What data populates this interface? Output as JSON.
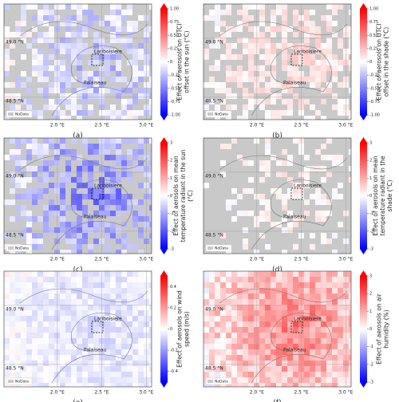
{
  "map_common": {
    "lonlim": [
      1.4,
      3.06
    ],
    "latlim": [
      48.31,
      49.29
    ],
    "lon_ticks": [
      {
        "value": 2.0,
        "label": "2.0 °E"
      },
      {
        "value": 2.5,
        "label": "2.5 °E"
      },
      {
        "value": 3.0,
        "label": "3.0 °E"
      }
    ],
    "lat_ticks": [
      {
        "value": 49.0,
        "label": "49.0 °N"
      },
      {
        "value": 48.5,
        "label": "48.5 °N"
      }
    ],
    "places": [
      "Lariboisiere",
      "Palaiseau"
    ],
    "legend": "NoData"
  },
  "panels": [
    {
      "label": "(a)",
      "colorbar_label": [
        "Effect of aerosols on UTCI",
        "offset in the sun (°C)"
      ],
      "clim": [
        -1,
        1
      ],
      "ticks": [
        {
          "value": 1,
          "label": "1.00"
        },
        {
          "value": 0.75,
          "label": "0.75"
        },
        {
          "value": 0.5,
          "label": "0.50"
        },
        {
          "value": 0.25,
          "label": "0.25"
        },
        0,
        {
          "value": -0.25,
          "label": "-0.25"
        },
        {
          "value": -0.5,
          "label": "-0.50"
        },
        {
          "value": -0.75,
          "label": "-0.75"
        },
        {
          "value": -1,
          "label": "-1.00"
        }
      ]
    },
    {
      "label": "(b)",
      "colorbar_label": [
        "Effect of aerosols on UTCI",
        "offset in the shade (°C)"
      ],
      "clim": [
        -1,
        1
      ],
      "ticks": [
        {
          "value": 1,
          "label": "1.00"
        },
        {
          "value": 0.75,
          "label": "0.75"
        },
        {
          "value": 0.5,
          "label": "0.50"
        },
        {
          "value": 0.25,
          "label": "0.25"
        },
        0,
        {
          "value": -0.25,
          "label": "-0.25"
        },
        {
          "value": -0.5,
          "label": "-0.50"
        },
        {
          "value": -0.75,
          "label": "-0.75"
        },
        {
          "value": -1,
          "label": "-1.00"
        }
      ]
    },
    {
      "label": "(c)",
      "colorbar_label": [
        "Effect of aerosols on mean",
        "temperature radiant in the sun",
        "(°C)"
      ],
      "clim": [
        -3,
        3
      ],
      "ticks": [
        3,
        2,
        1,
        0,
        -1,
        -2,
        -3
      ]
    },
    {
      "label": "(d)",
      "colorbar_label": [
        "Effect of aerosols on mean",
        "temperature radiant in the",
        "shade (°C)"
      ],
      "clim": [
        -3,
        3
      ],
      "ticks": [
        3,
        2,
        1,
        0,
        -1,
        -2,
        -3
      ]
    },
    {
      "label": "(e)",
      "colorbar_label": [
        "Effect of aerosols on wind",
        "speed (m/s)"
      ],
      "clim": [
        -0.5,
        0.5
      ],
      "ticks": [
        0.4,
        0.2,
        0,
        -0.2,
        -0.4
      ]
    },
    {
      "label": "(f)",
      "colorbar_label": [
        "Effect of aerosols on air",
        "humidity (%)"
      ],
      "clim": [
        -3,
        3
      ],
      "ticks": [
        3,
        2,
        1,
        0,
        -1,
        -2,
        -3
      ]
    }
  ]
}
